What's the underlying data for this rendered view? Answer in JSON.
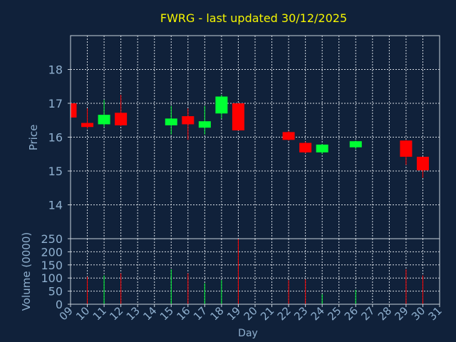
{
  "chart_data": {
    "type": "candlestick",
    "title": "FWRG - last updated 30/12/2025",
    "xlabel": "Day",
    "price_panel": {
      "ylabel": "Price",
      "ylim": [
        13.0,
        19.0
      ],
      "yticks": [
        14,
        15,
        16,
        17,
        18
      ],
      "grid": true
    },
    "volume_panel": {
      "ylabel": "Volume (0000)",
      "ylim": [
        0,
        250
      ],
      "yticks": [
        0,
        50,
        100,
        150,
        200,
        250
      ],
      "grid": true
    },
    "x_ticks": [
      "09",
      "10",
      "11",
      "12",
      "13",
      "14",
      "15",
      "16",
      "17",
      "18",
      "19",
      "20",
      "21",
      "22",
      "23",
      "24",
      "25",
      "26",
      "27",
      "28",
      "29",
      "30",
      "31"
    ],
    "candles": [
      {
        "day": "09",
        "open": 17.0,
        "high": 17.0,
        "low": 16.58,
        "close": 16.58,
        "volume": 0
      },
      {
        "day": "10",
        "open": 16.42,
        "high": 16.85,
        "low": 16.25,
        "close": 16.3,
        "volume": 105
      },
      {
        "day": "11",
        "open": 16.38,
        "high": 17.1,
        "low": 16.3,
        "close": 16.66,
        "volume": 110
      },
      {
        "day": "12",
        "open": 16.72,
        "high": 17.25,
        "low": 16.33,
        "close": 16.35,
        "volume": 118
      },
      {
        "day": "15",
        "open": 16.35,
        "high": 16.92,
        "low": 16.08,
        "close": 16.55,
        "volume": 133
      },
      {
        "day": "16",
        "open": 16.62,
        "high": 16.85,
        "low": 15.92,
        "close": 16.38,
        "volume": 118
      },
      {
        "day": "17",
        "open": 16.28,
        "high": 16.92,
        "low": 16.08,
        "close": 16.47,
        "volume": 80
      },
      {
        "day": "18",
        "open": 16.7,
        "high": 17.25,
        "low": 16.55,
        "close": 17.2,
        "volume": 92
      },
      {
        "day": "19",
        "open": 17.0,
        "high": 17.0,
        "low": 16.2,
        "close": 16.2,
        "volume": 250
      },
      {
        "day": "22",
        "open": 16.15,
        "high": 16.18,
        "low": 15.9,
        "close": 15.92,
        "volume": 92
      },
      {
        "day": "23",
        "open": 15.83,
        "high": 15.87,
        "low": 15.52,
        "close": 15.55,
        "volume": 95
      },
      {
        "day": "24",
        "open": 15.55,
        "high": 15.8,
        "low": 15.5,
        "close": 15.78,
        "volume": 38
      },
      {
        "day": "26",
        "open": 15.7,
        "high": 15.9,
        "low": 15.65,
        "close": 15.88,
        "volume": 55
      },
      {
        "day": "29",
        "open": 15.9,
        "high": 15.92,
        "low": 15.18,
        "close": 15.42,
        "volume": 133
      },
      {
        "day": "30",
        "open": 15.42,
        "high": 15.42,
        "low": 14.8,
        "close": 15.02,
        "volume": 110
      }
    ]
  },
  "colors": {
    "background": "#10213a",
    "plot_border": "#c8d2dc",
    "grid": "#d7dde4",
    "title": "#f5f500",
    "axis_text": "#8fb0cf",
    "up": "#00ff33",
    "down": "#ff0000"
  }
}
